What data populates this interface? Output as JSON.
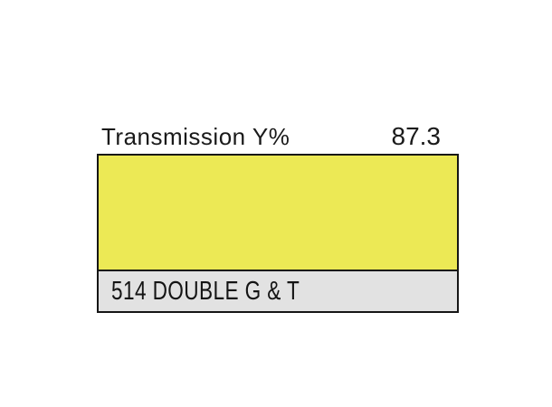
{
  "header": {
    "label": "Transmission Y%",
    "value": "87.3"
  },
  "swatch": {
    "name": "514 DOUBLE G & T",
    "swatch_color": "#ece955",
    "label_bg_color": "#e2e2e2",
    "border_color": "#161616"
  }
}
